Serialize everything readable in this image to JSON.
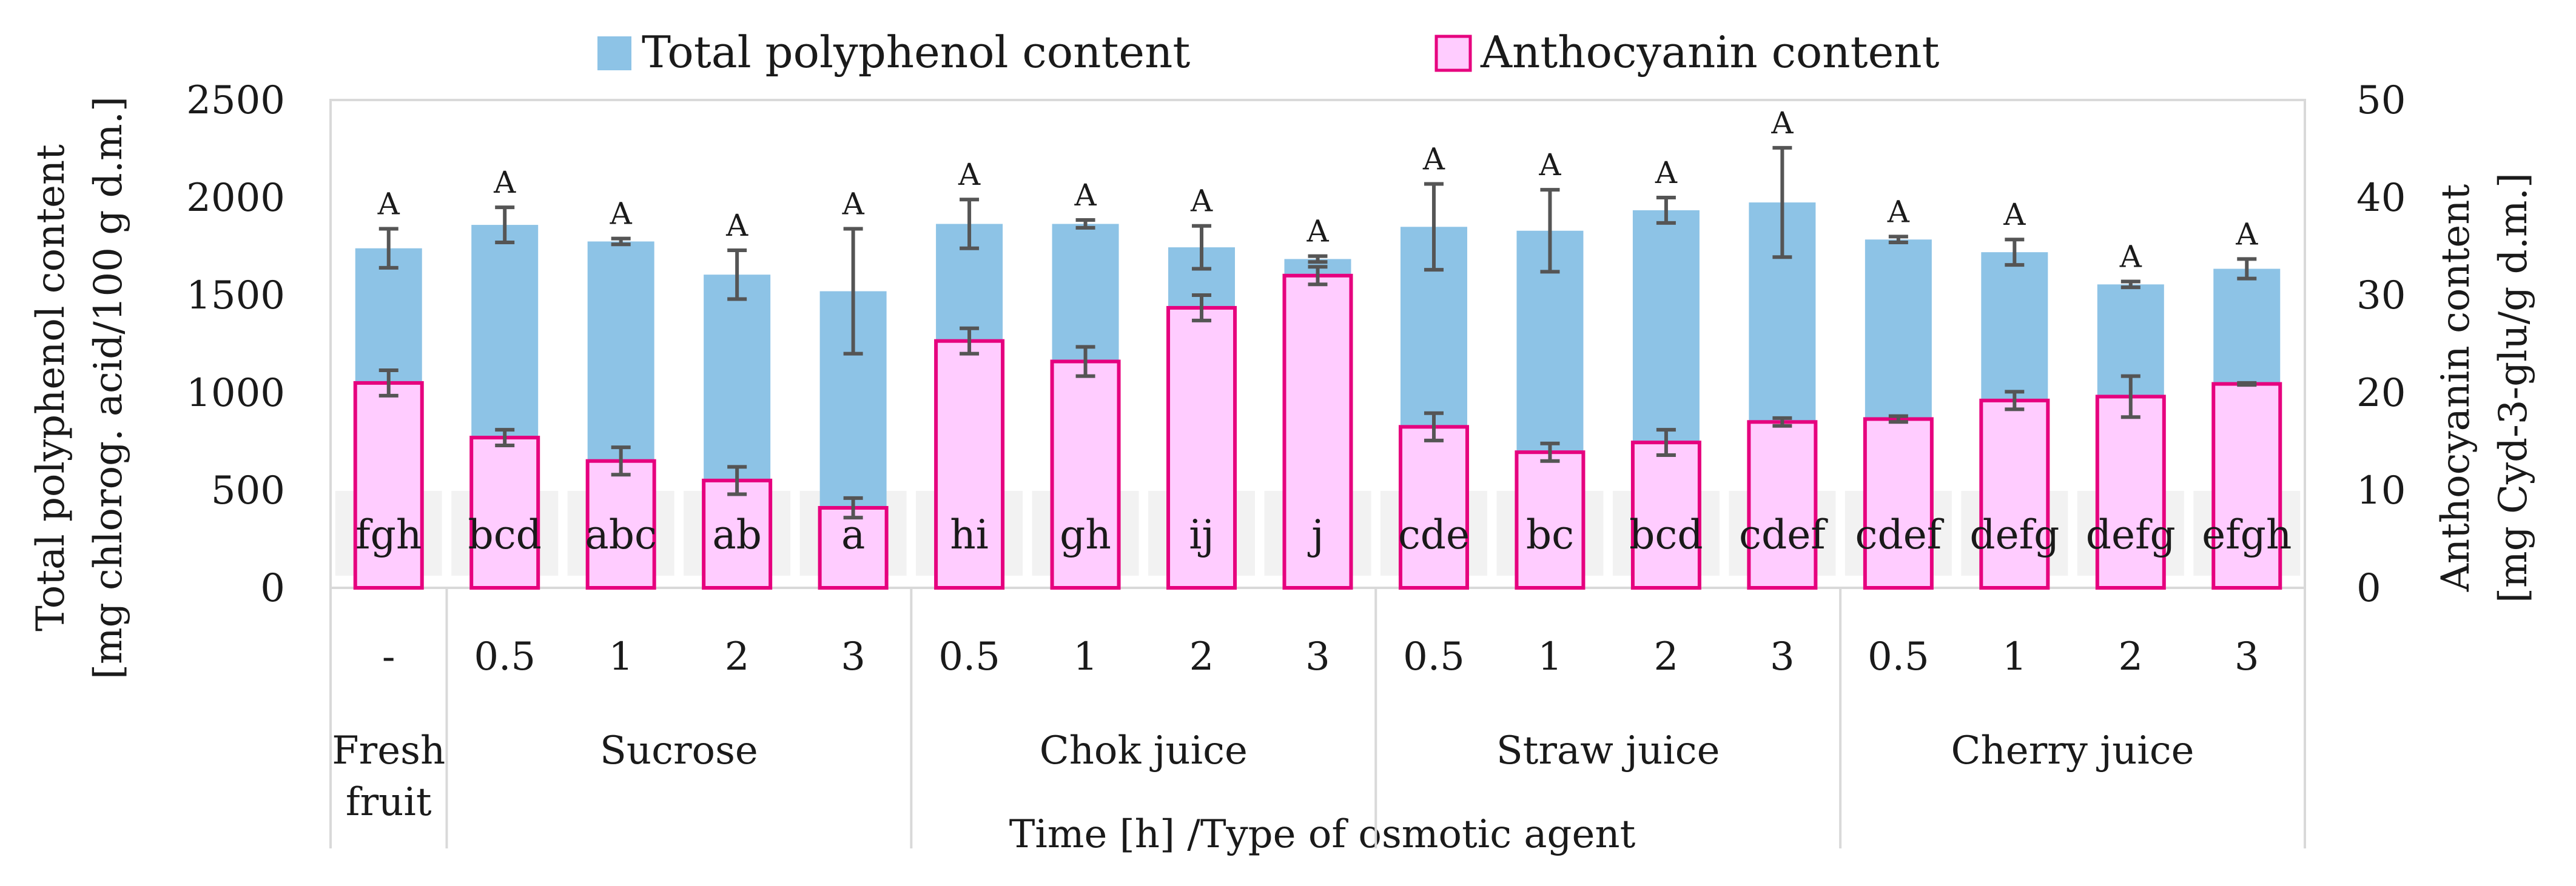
{
  "chart_data": {
    "type": "bar",
    "legend_position": "top",
    "x_axis_title": "Time [h] /Type of osmotic agent",
    "y_left_title_line1": "Total polyphenol content",
    "y_left_title_line2": "[mg chlorog. acid/100 g d.m.]",
    "y_right_title_line1": "Anthocyanin content",
    "y_right_title_line2": "[mg Cyd-3-glu/g d.m.]",
    "y_left_lim": [
      0,
      2500
    ],
    "y_left_ticks": [
      "0",
      "500",
      "1000",
      "1500",
      "2000",
      "2500"
    ],
    "y_right_lim": [
      0,
      50
    ],
    "y_right_ticks": [
      "0",
      "10",
      "20",
      "30",
      "40",
      "50"
    ],
    "categories": [
      "-",
      "0.5",
      "1",
      "2",
      "3",
      "0.5",
      "1",
      "2",
      "3",
      "0.5",
      "1",
      "2",
      "3",
      "0.5",
      "1",
      "2",
      "3"
    ],
    "groups": [
      {
        "label_line1": "Fresh",
        "label_line2": "fruit",
        "span": 1
      },
      {
        "label_line1": "Sucrose",
        "label_line2": "",
        "span": 4
      },
      {
        "label_line1": "Chok juice",
        "label_line2": "",
        "span": 4
      },
      {
        "label_line1": "Straw juice",
        "label_line2": "",
        "span": 4
      },
      {
        "label_line1": "Cherry juice",
        "label_line2": "",
        "span": 4
      }
    ],
    "series": [
      {
        "name": "Total polyphenol content",
        "axis": "left",
        "color": "#8DC3E6",
        "values": [
          1740,
          1860,
          1775,
          1605,
          1520,
          1865,
          1865,
          1745,
          1685,
          1850,
          1830,
          1935,
          1975,
          1785,
          1720,
          1555,
          1635
        ],
        "errors": [
          100,
          90,
          15,
          125,
          320,
          125,
          20,
          110,
          15,
          220,
          210,
          65,
          280,
          15,
          65,
          15,
          50
        ],
        "significance": [
          "A",
          "A",
          "A",
          "A",
          "A",
          "A",
          "A",
          "A",
          "A",
          "A",
          "A",
          "A",
          "A",
          "A",
          "A",
          "A",
          "A"
        ]
      },
      {
        "name": "Anthocyanin content",
        "axis": "right",
        "color": "#FFCCFF",
        "edge_color": "#E6007E",
        "values": [
          21.0,
          15.4,
          13.0,
          11.0,
          8.2,
          25.3,
          23.2,
          28.7,
          32.0,
          16.5,
          13.9,
          14.9,
          17.0,
          17.3,
          19.2,
          19.6,
          20.9
        ],
        "errors": [
          1.3,
          0.8,
          1.4,
          1.4,
          1.0,
          1.3,
          1.5,
          1.3,
          0.9,
          1.4,
          0.9,
          1.3,
          0.4,
          0.3,
          0.9,
          2.1,
          0.1
        ],
        "significance": [
          "fgh",
          "bcd",
          "abc",
          "ab",
          "a",
          "hi",
          "gh",
          "ij",
          "j",
          "cde",
          "bc",
          "bcd",
          "cdef",
          "cdef",
          "defg",
          "defg",
          "efgh"
        ]
      }
    ]
  },
  "colors": {
    "error_bar": "#555555",
    "grid_border": "#d9d9d9",
    "label_band": "#f2f2f2"
  }
}
